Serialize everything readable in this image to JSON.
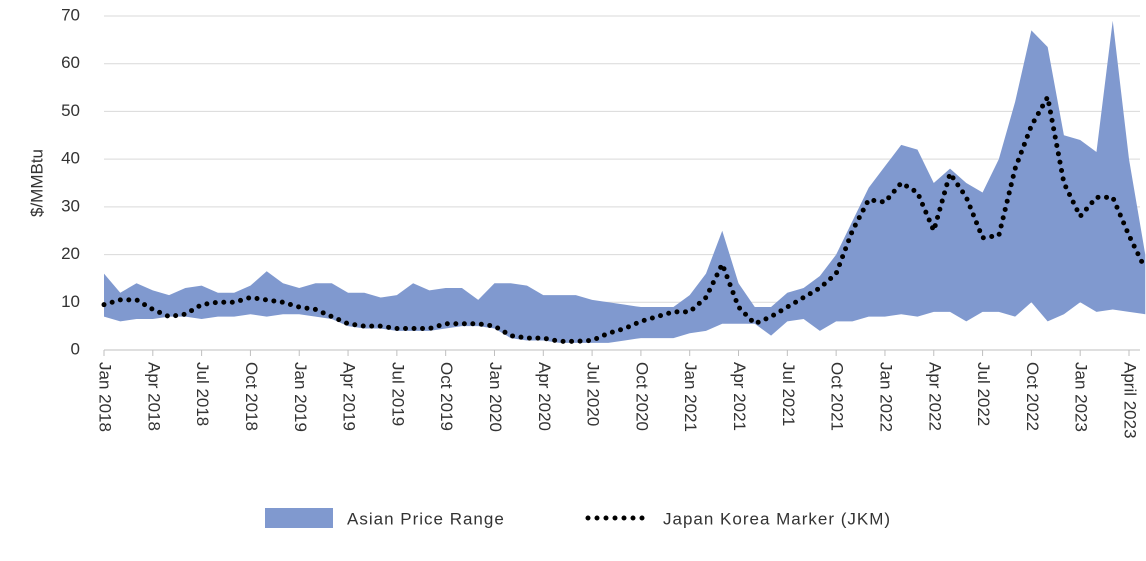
{
  "chart_data": {
    "type": "range-line",
    "ylabel": "$/MMBtu",
    "categories": [
      "Jan 2018",
      null,
      null,
      "Apr 2018",
      null,
      null,
      "Jul 2018",
      null,
      null,
      "Oct 2018",
      null,
      null,
      "Jan 2019",
      null,
      null,
      "Apr 2019",
      null,
      null,
      "Jul 2019",
      null,
      null,
      "Oct 2019",
      null,
      null,
      "Jan 2020",
      null,
      null,
      "Apr 2020",
      null,
      null,
      "Jul 2020",
      null,
      null,
      "Oct 2020",
      null,
      null,
      "Jan 2021",
      null,
      null,
      "Apr 2021",
      null,
      null,
      "Jul 2021",
      null,
      null,
      "Oct 2021",
      null,
      null,
      "Jan 2022",
      null,
      null,
      "Apr 2022",
      null,
      null,
      "Jul 2022",
      null,
      null,
      "Oct 2022",
      null,
      null,
      "Jan 2023",
      null,
      null,
      "April 2023",
      null
    ],
    "series": [
      {
        "name": "Asian Price Range",
        "color": "#8099cf",
        "high": [
          16,
          12,
          14,
          12.5,
          11.5,
          13,
          13.5,
          12,
          12,
          13.5,
          16.5,
          14,
          13,
          14,
          14,
          12,
          12,
          11,
          11.5,
          14,
          12.5,
          13,
          13,
          10.5,
          14,
          14,
          13.5,
          11.5,
          11.5,
          11.5,
          10.5,
          10,
          9.5,
          9,
          9,
          9,
          11.5,
          16,
          25,
          14,
          9,
          9,
          12,
          13,
          15.5,
          20,
          27,
          34,
          38.5,
          43,
          42,
          35,
          38,
          35,
          33,
          40,
          52,
          67,
          63.5,
          45,
          44,
          41.5,
          69,
          40,
          20
        ],
        "low": [
          7,
          6,
          6.5,
          6.5,
          7,
          7,
          6.5,
          7,
          7,
          7.5,
          7,
          7.5,
          7.5,
          7,
          6.5,
          5,
          4.5,
          4.5,
          4,
          4,
          4,
          4.5,
          5,
          5,
          4.5,
          2.5,
          2,
          2,
          1.5,
          1.5,
          1.5,
          1.5,
          2,
          2.5,
          2.5,
          2.5,
          3.5,
          4,
          5.5,
          5.5,
          5.5,
          3,
          6,
          6.5,
          4,
          6,
          6,
          7,
          7,
          7.5,
          7,
          8,
          8,
          6,
          8,
          8,
          7,
          10,
          6,
          7.5,
          10,
          8,
          8.5,
          8,
          7.5
        ]
      },
      {
        "name": "Japan Korea Marker (JKM)",
        "color": "#000000",
        "values": [
          9.5,
          10.5,
          10.5,
          8.5,
          7,
          7.5,
          9.5,
          10,
          10,
          11,
          10.5,
          10,
          9,
          8.5,
          7,
          5.5,
          5,
          5,
          4.5,
          4.5,
          4.5,
          5.5,
          5.5,
          5.5,
          5,
          3,
          2.5,
          2.5,
          1.8,
          1.8,
          2,
          3.5,
          4.5,
          6,
          7,
          8,
          8,
          11,
          18,
          9,
          5.5,
          7,
          9,
          11,
          13,
          16,
          25,
          31.5,
          31,
          35,
          33,
          25,
          37,
          32,
          23.5,
          24,
          38,
          47,
          53,
          35,
          28,
          32,
          32,
          24,
          17
        ]
      }
    ],
    "ylim": [
      0,
      70
    ],
    "yticks": [
      0,
      10,
      20,
      30,
      40,
      50,
      60,
      70
    ],
    "grid": true,
    "legend": "bottom"
  }
}
